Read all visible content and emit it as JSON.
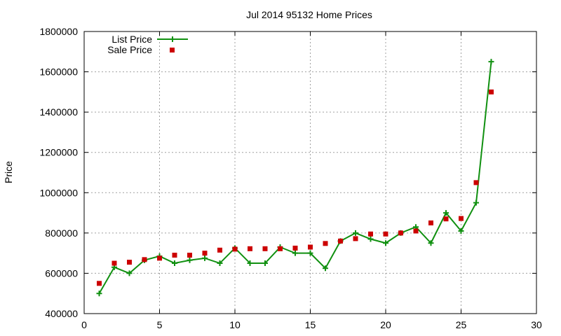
{
  "chart_data": {
    "type": "line",
    "title": "Jul 2014 95132 Home Prices",
    "xlabel": "",
    "ylabel": "Price",
    "xlim": [
      0,
      30
    ],
    "ylim": [
      400000,
      1800000
    ],
    "x_ticks": [
      0,
      5,
      10,
      15,
      20,
      25,
      30
    ],
    "y_ticks": [
      400000,
      600000,
      800000,
      1000000,
      1200000,
      1400000,
      1600000,
      1800000
    ],
    "grid": true,
    "legend_position": "top-left",
    "series": [
      {
        "name": "List Price",
        "style": "line+cross",
        "color": "#109010",
        "x": [
          1,
          2,
          3,
          4,
          5,
          6,
          7,
          8,
          9,
          10,
          11,
          12,
          13,
          14,
          15,
          16,
          17,
          18,
          19,
          20,
          21,
          22,
          23,
          24,
          25,
          26,
          27
        ],
        "values": [
          500000,
          630000,
          600000,
          665000,
          685000,
          650000,
          665000,
          675000,
          650000,
          725000,
          650000,
          650000,
          730000,
          700000,
          700000,
          625000,
          760000,
          800000,
          770000,
          750000,
          800000,
          830000,
          750000,
          900000,
          810000,
          950000,
          1650000
        ]
      },
      {
        "name": "Sale Price",
        "style": "square",
        "color": "#cc0000",
        "x": [
          1,
          2,
          3,
          4,
          5,
          6,
          7,
          8,
          9,
          10,
          11,
          12,
          13,
          14,
          15,
          16,
          17,
          18,
          19,
          20,
          21,
          22,
          23,
          24,
          25,
          26,
          27
        ],
        "values": [
          550000,
          650000,
          655000,
          668000,
          675000,
          690000,
          690000,
          700000,
          715000,
          720000,
          722000,
          722000,
          722000,
          725000,
          730000,
          748000,
          760000,
          772000,
          795000,
          795000,
          800000,
          810000,
          850000,
          870000,
          872000,
          1050000,
          1500000
        ]
      }
    ]
  }
}
